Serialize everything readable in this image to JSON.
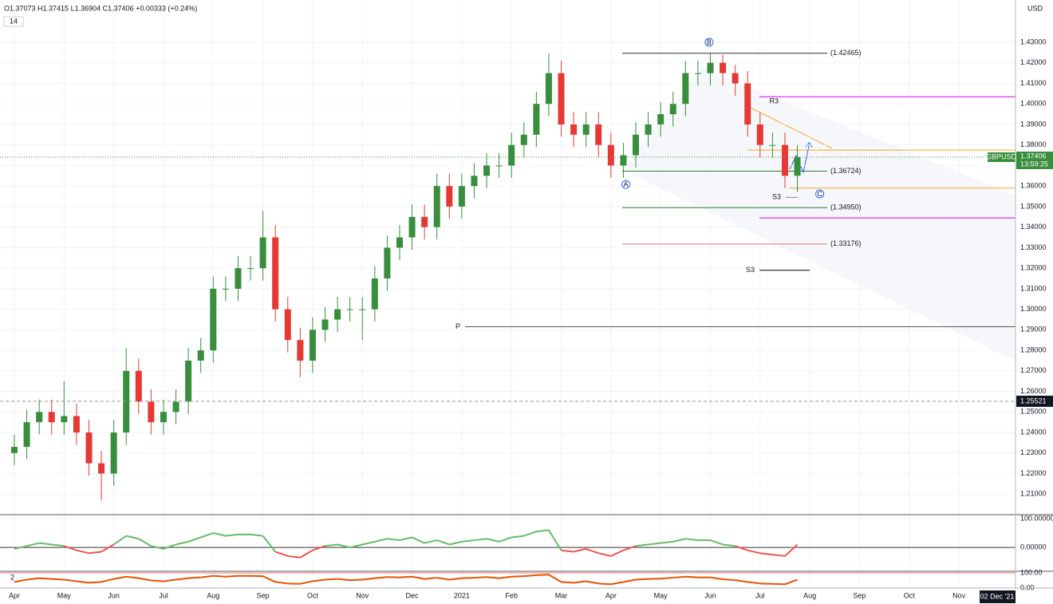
{
  "chart_data": [
    {
      "type": "candlestick",
      "symbol": "GBPUSD",
      "header": "O1.37073 H1.37415 L1.36904 C1.37406 +0.00333 (+0.24%)",
      "indicator_count": "14",
      "currency": "USD",
      "crosshair_date": "02 Dec '21",
      "countdown": "13:59:25",
      "last_price": {
        "value": 1.37406,
        "label": "1.37406"
      },
      "marker_price": {
        "value": 1.25521,
        "label": "1.25521"
      },
      "up_color": "#388e3c",
      "down_color": "#e53935",
      "grid": true,
      "categories": [
        "Apr",
        null,
        null,
        null,
        "May",
        null,
        null,
        null,
        "Jun",
        null,
        null,
        null,
        "Jul",
        null,
        null,
        null,
        "Aug",
        null,
        null,
        null,
        "Sep",
        null,
        null,
        null,
        "Oct",
        null,
        null,
        null,
        "Nov",
        null,
        null,
        null,
        "Dec",
        null,
        null,
        null,
        "2021",
        null,
        null,
        null,
        "Feb",
        null,
        null,
        null,
        "Mar",
        null,
        null,
        null,
        "Apr",
        null,
        null,
        null,
        "May",
        null,
        null,
        null,
        "Jun",
        null,
        null,
        null,
        "Jul",
        null,
        null,
        null,
        "Aug",
        null,
        null,
        null,
        "Sep",
        null,
        null,
        null,
        "Oct",
        null,
        null,
        null,
        "Nov",
        null,
        null,
        null
      ],
      "open": [
        1.23,
        1.233,
        1.245,
        1.25,
        1.245,
        1.248,
        1.24,
        1.225,
        1.22,
        1.24,
        1.27,
        1.255,
        1.245,
        1.25,
        1.255,
        1.275,
        1.28,
        1.31,
        1.31,
        1.32,
        1.32,
        1.335,
        1.3,
        1.285,
        1.275,
        1.29,
        1.295,
        1.3,
        1.3,
        1.3,
        1.315,
        1.33,
        1.335,
        1.345,
        1.34,
        1.36,
        1.35,
        1.36,
        1.365,
        1.37,
        1.37,
        1.38,
        1.385,
        1.4,
        1.415,
        1.39,
        1.385,
        1.39,
        1.38,
        1.37,
        1.375,
        1.385,
        1.39,
        1.395,
        1.4,
        1.415,
        1.415,
        1.42,
        1.415,
        1.41,
        1.39,
        1.38,
        1.38,
        1.365,
        null,
        null,
        null,
        null,
        null,
        null,
        null,
        null,
        null,
        null,
        null,
        null,
        null,
        null,
        null,
        null
      ],
      "high": [
        1.239,
        1.251,
        1.256,
        1.256,
        1.265,
        1.254,
        1.246,
        1.231,
        1.246,
        1.281,
        1.276,
        1.261,
        1.256,
        1.261,
        1.281,
        1.286,
        1.316,
        1.316,
        1.326,
        1.326,
        1.348,
        1.341,
        1.306,
        1.291,
        1.296,
        1.301,
        1.306,
        1.306,
        1.306,
        1.321,
        1.336,
        1.341,
        1.351,
        1.351,
        1.366,
        1.366,
        1.366,
        1.371,
        1.376,
        1.376,
        1.386,
        1.391,
        1.406,
        1.4245,
        1.421,
        1.396,
        1.396,
        1.396,
        1.386,
        1.381,
        1.391,
        1.396,
        1.401,
        1.406,
        1.421,
        1.421,
        1.4248,
        1.424,
        1.419,
        1.416,
        1.396,
        1.386,
        1.386,
        1.38,
        null,
        null,
        null,
        null,
        null,
        null,
        null,
        null,
        null,
        null,
        null,
        null,
        null,
        null,
        null,
        null
      ],
      "low": [
        1.224,
        1.227,
        1.239,
        1.239,
        1.239,
        1.234,
        1.219,
        1.207,
        1.214,
        1.234,
        1.249,
        1.239,
        1.239,
        1.244,
        1.249,
        1.269,
        1.274,
        1.304,
        1.304,
        1.314,
        1.314,
        1.294,
        1.279,
        1.267,
        1.269,
        1.284,
        1.289,
        1.294,
        1.285,
        1.294,
        1.309,
        1.324,
        1.329,
        1.334,
        1.334,
        1.344,
        1.344,
        1.354,
        1.359,
        1.364,
        1.364,
        1.374,
        1.379,
        1.394,
        1.384,
        1.379,
        1.379,
        1.374,
        1.364,
        1.364,
        1.369,
        1.379,
        1.384,
        1.389,
        1.394,
        1.409,
        1.409,
        1.409,
        1.404,
        1.384,
        1.374,
        1.374,
        1.359,
        1.3572,
        null,
        null,
        null,
        null,
        null,
        null,
        null,
        null,
        null,
        null,
        null,
        null,
        null,
        null,
        null,
        null
      ],
      "close": [
        1.233,
        1.245,
        1.25,
        1.245,
        1.248,
        1.24,
        1.225,
        1.22,
        1.24,
        1.27,
        1.255,
        1.245,
        1.25,
        1.255,
        1.275,
        1.28,
        1.31,
        1.31,
        1.32,
        1.32,
        1.335,
        1.3,
        1.285,
        1.275,
        1.29,
        1.295,
        1.3,
        1.3,
        1.3,
        1.315,
        1.33,
        1.335,
        1.345,
        1.34,
        1.36,
        1.35,
        1.36,
        1.365,
        1.37,
        1.37,
        1.38,
        1.385,
        1.4,
        1.415,
        1.39,
        1.385,
        1.39,
        1.38,
        1.37,
        1.375,
        1.385,
        1.39,
        1.395,
        1.4,
        1.415,
        1.415,
        1.42,
        1.415,
        1.41,
        1.39,
        1.38,
        1.38,
        1.365,
        1.3741,
        null,
        null,
        null,
        null,
        null,
        null,
        null,
        null,
        null,
        null,
        null,
        null,
        null,
        null,
        null,
        null
      ],
      "ylim": [
        1.2,
        1.4506
      ],
      "yticks": [
        {
          "value": 1.21,
          "label": "1.21000"
        },
        {
          "value": 1.22,
          "label": "1.22000"
        },
        {
          "value": 1.23,
          "label": "1.23000"
        },
        {
          "value": 1.24,
          "label": "1.24000"
        },
        {
          "value": 1.25,
          "label": "1.25000"
        },
        {
          "value": 1.26,
          "label": "1.26000"
        },
        {
          "value": 1.27,
          "label": "1.27000"
        },
        {
          "value": 1.28,
          "label": "1.28000"
        },
        {
          "value": 1.29,
          "label": "1.29000"
        },
        {
          "value": 1.3,
          "label": "1.30000"
        },
        {
          "value": 1.31,
          "label": "1.31000"
        },
        {
          "value": 1.32,
          "label": "1.32000"
        },
        {
          "value": 1.33,
          "label": "1.33000"
        },
        {
          "value": 1.34,
          "label": "1.34000"
        },
        {
          "value": 1.35,
          "label": "1.35000"
        },
        {
          "value": 1.36,
          "label": "1.36000"
        },
        {
          "value": 1.37,
          "label": "1.37000"
        },
        {
          "value": 1.38,
          "label": "1.38000"
        },
        {
          "value": 1.39,
          "label": "1.39000"
        },
        {
          "value": 1.4,
          "label": "1.40000"
        },
        {
          "value": 1.41,
          "label": "1.41000"
        },
        {
          "value": 1.42,
          "label": "1.42000"
        },
        {
          "value": 1.43,
          "label": "1.43000"
        }
      ],
      "levels": [
        {
          "value": 1.42465,
          "label": "(1.42465)",
          "color": "#333333"
        },
        {
          "value": 1.36724,
          "label": "(1.36724)",
          "color": "#2e7d32"
        },
        {
          "value": 1.3495,
          "label": "(1.34950)",
          "color": "#2e7d32"
        },
        {
          "value": 1.33176,
          "label": "(1.33176)",
          "color": "#e57373"
        },
        {
          "value": 1.4035,
          "name": "R3",
          "color": "#d500f9"
        },
        {
          "value": 1.3445,
          "color": "#d500f9"
        },
        {
          "value": 1.319,
          "name": "S3",
          "color": "#000000"
        },
        {
          "value": 1.2915,
          "name": "P",
          "color": "#555555"
        },
        {
          "value": 1.3775,
          "color": "#f5a623"
        },
        {
          "value": 1.359,
          "color": "#f5a623"
        },
        {
          "value": 1.3545,
          "name": "S3",
          "color": "#888888"
        }
      ],
      "waves": [
        {
          "label": "A",
          "index": 49.2,
          "price": 1.3608
        },
        {
          "label": "B",
          "index": 55.9,
          "price": 1.43
        },
        {
          "label": "C",
          "index": 64.8,
          "price": 1.3562
        }
      ]
    },
    {
      "type": "line",
      "positive_color": "#66bb6a",
      "negative_color": "#ef5350",
      "ylim": [
        -80,
        111
      ],
      "yticks": [
        {
          "value": 100,
          "label": "100.00000"
        },
        {
          "value": 0,
          "label": "0.00000"
        }
      ],
      "values": [
        -5,
        5,
        15,
        10,
        5,
        -10,
        -20,
        -15,
        10,
        40,
        30,
        5,
        -5,
        10,
        20,
        35,
        50,
        40,
        45,
        45,
        40,
        -15,
        -30,
        -35,
        -10,
        5,
        10,
        0,
        10,
        20,
        30,
        25,
        35,
        15,
        25,
        10,
        20,
        25,
        30,
        20,
        35,
        40,
        55,
        60,
        -10,
        -15,
        -5,
        -20,
        -30,
        -10,
        5,
        10,
        15,
        20,
        30,
        25,
        25,
        10,
        5,
        -10,
        -20,
        -25,
        -30,
        10,
        null,
        null,
        null,
        null,
        null,
        null,
        null,
        null,
        null,
        null,
        null,
        null,
        null,
        null,
        null,
        null
      ]
    },
    {
      "type": "line",
      "label": "2",
      "color": "#e65100",
      "ylim": [
        -5,
        105
      ],
      "yticks": [
        {
          "value": 100,
          "label": "100.00"
        },
        {
          "value": 0,
          "label": "0.00"
        }
      ],
      "values": [
        40,
        55,
        65,
        60,
        55,
        45,
        35,
        40,
        60,
        75,
        65,
        50,
        45,
        55,
        65,
        70,
        80,
        75,
        80,
        80,
        78,
        40,
        30,
        28,
        45,
        55,
        60,
        52,
        55,
        65,
        72,
        70,
        75,
        60,
        68,
        55,
        65,
        68,
        72,
        65,
        75,
        78,
        85,
        88,
        40,
        35,
        45,
        30,
        25,
        40,
        55,
        60,
        62,
        68,
        75,
        70,
        70,
        58,
        52,
        40,
        30,
        28,
        25,
        55,
        null,
        null,
        null,
        null,
        null,
        null,
        null,
        null,
        null,
        null,
        null,
        null,
        null,
        null,
        null,
        null
      ]
    }
  ]
}
